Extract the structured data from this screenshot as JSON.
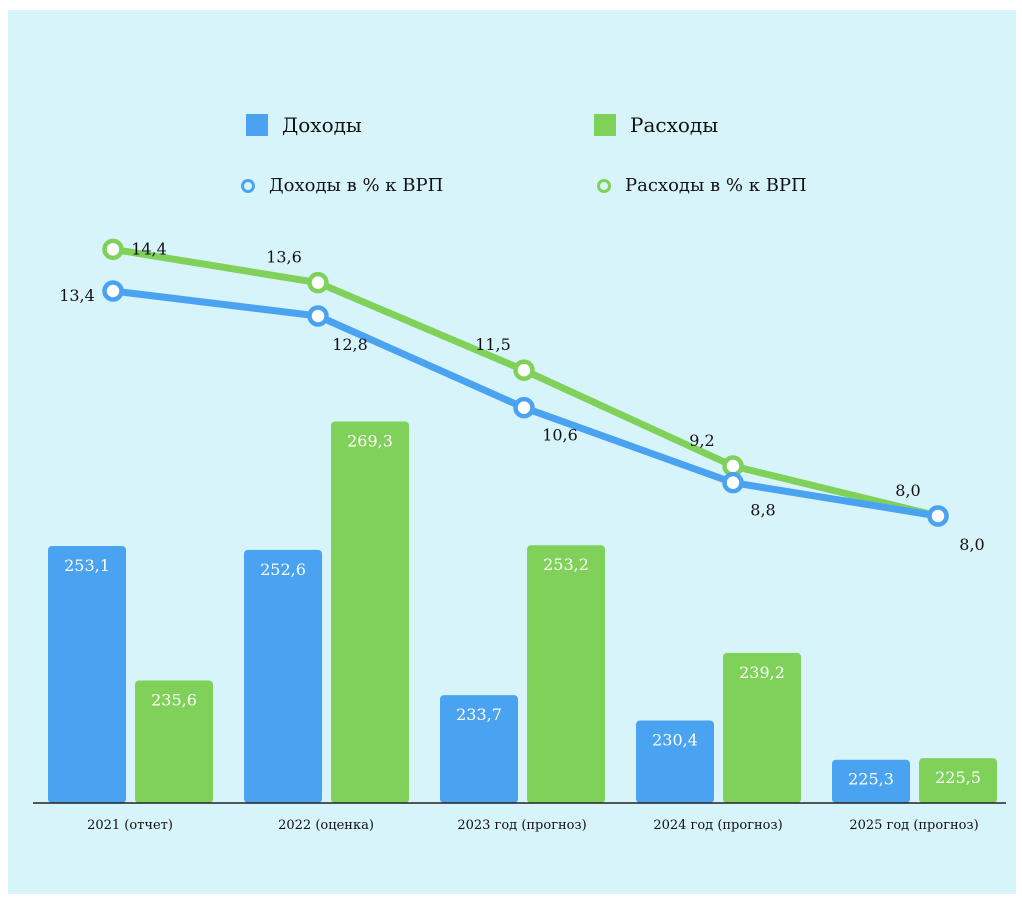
{
  "legend": {
    "income": "Доходы",
    "expenses": "Расходы",
    "income_pct": "Доходы в % к ВРП",
    "expenses_pct": "Расходы в % к ВРП"
  },
  "colors": {
    "income": "#4aa3f0",
    "expenses": "#7fd15a",
    "background": "#d8f4fb"
  },
  "chart_data": {
    "type": "bar",
    "categories": [
      "2021 (отчет)",
      "2022 (оценка)",
      "2023 год (прогноз)",
      "2024 год (прогноз)",
      "2025 год (прогноз)"
    ],
    "series": [
      {
        "name": "Доходы",
        "type": "bar",
        "values": [
          253.1,
          252.6,
          233.7,
          230.4,
          225.3
        ],
        "labels": [
          "253,1",
          "252,6",
          "233,7",
          "230,4",
          "225,3"
        ]
      },
      {
        "name": "Расходы",
        "type": "bar",
        "values": [
          235.6,
          269.3,
          253.2,
          239.2,
          225.5
        ],
        "labels": [
          "235,6",
          "269,3",
          "253,2",
          "239,2",
          "225,5"
        ]
      },
      {
        "name": "Доходы в % к ВРП",
        "type": "line",
        "values": [
          13.4,
          12.8,
          10.6,
          8.8,
          8.0
        ],
        "labels": [
          "13,4",
          "12,8",
          "10,6",
          "8,8",
          "8,0"
        ]
      },
      {
        "name": "Расходы в % к ВРП",
        "type": "line",
        "values": [
          14.4,
          13.6,
          11.5,
          9.2,
          8.0
        ],
        "labels": [
          "14,4",
          "13,6",
          "11,5",
          "9,2",
          "8,0"
        ]
      }
    ],
    "grid": false,
    "legend_position": "top"
  }
}
